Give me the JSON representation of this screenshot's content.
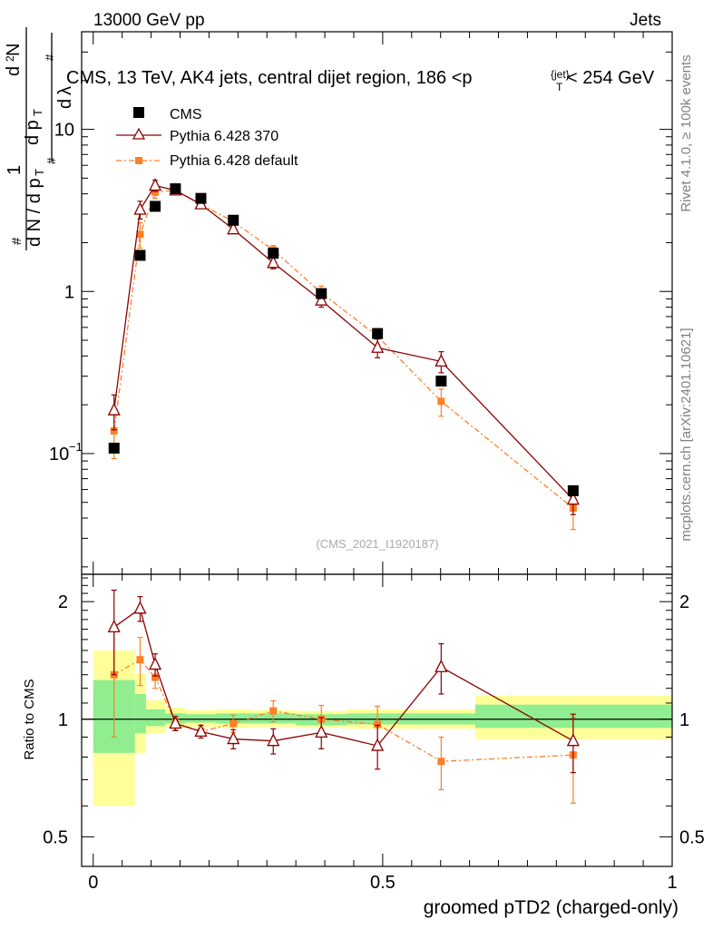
{
  "header": {
    "energy_label": "13000 GeV pp",
    "category_label": "Jets"
  },
  "side_labels": {
    "rivet": "Rivet 4.1.0, ≥ 100k events",
    "mcplots": "mcplots.cern.ch [arXiv:2401.10621]"
  },
  "watermark": "(CMS_2021_I1920187)",
  "colors": {
    "cms": "#000000",
    "pythia370": "#8b0000",
    "pythia_default": "#ff7f27",
    "band_inner": "#90ee90",
    "band_outer": "#ffff99"
  },
  "chart_data": [
    {
      "type": "scatter",
      "title": "CMS, 13 TeV, AK4 jets, central dijet region, 186 < p_T^{jet} < 254 GeV",
      "title_main": "CMS, 13 TeV, AK4 jets, central dijet region, 186 <p",
      "title_sub": "T",
      "title_sup": "{jet}",
      "title_end": "< 254 GeV",
      "ylabel": "1/(dN/dp_T) d²N/(dp_T dλ)",
      "yscale": "log",
      "ylim": [
        0.018,
        40
      ],
      "xlim": [
        -0.02,
        1.0
      ],
      "yticks": [
        {
          "value": 0.1,
          "label": "10",
          "sup": "−1"
        },
        {
          "value": 1,
          "label": "1",
          "sup": ""
        },
        {
          "value": 10,
          "label": "10",
          "sup": ""
        }
      ],
      "legend": [
        {
          "name": "CMS",
          "marker": "square"
        },
        {
          "name": "Pythia 6.428 370",
          "marker": "triangle"
        },
        {
          "name": "Pythia 6.428 default",
          "marker": "small-square"
        }
      ],
      "x": [
        0.036,
        0.081,
        0.107,
        0.142,
        0.186,
        0.242,
        0.311,
        0.394,
        0.491,
        0.601,
        0.829
      ],
      "series": [
        {
          "name": "CMS",
          "values": [
            0.108,
            1.67,
            3.35,
            4.3,
            3.75,
            2.75,
            1.72,
            0.97,
            0.55,
            0.28,
            0.059
          ],
          "err": [
            0,
            0,
            0,
            0,
            0,
            0,
            0,
            0,
            0,
            0,
            0
          ]
        },
        {
          "name": "Pythia 6.428 370",
          "values": [
            0.185,
            3.2,
            4.5,
            4.2,
            3.45,
            2.42,
            1.5,
            0.88,
            0.45,
            0.37,
            0.052
          ],
          "err": [
            0.045,
            0.4,
            0.35,
            0.2,
            0.15,
            0.14,
            0.12,
            0.08,
            0.06,
            0.055,
            0.01
          ]
        },
        {
          "name": "Pythia 6.428 default",
          "values": [
            0.138,
            2.25,
            4.1,
            4.2,
            3.45,
            2.7,
            1.8,
            0.98,
            0.53,
            0.21,
            0.046
          ],
          "err": [
            0.045,
            0.4,
            0.35,
            0.2,
            0.15,
            0.14,
            0.12,
            0.1,
            0.06,
            0.04,
            0.012
          ]
        }
      ]
    },
    {
      "type": "scatter",
      "title": "",
      "xlabel": "groomed pTD2 (charged-only)",
      "ylabel": "Ratio to CMS",
      "yscale": "log",
      "ylim": [
        0.42,
        2.35
      ],
      "xlim": [
        -0.02,
        1.0
      ],
      "xticks": [
        {
          "value": 0,
          "label": "0"
        },
        {
          "value": 0.5,
          "label": "0.5"
        },
        {
          "value": 1,
          "label": "1"
        }
      ],
      "yticks": [
        {
          "value": 0.5,
          "label": "0.5"
        },
        {
          "value": 1,
          "label": "1"
        },
        {
          "value": 2,
          "label": "2"
        }
      ],
      "bands": [
        {
          "x0": 0.0,
          "x1": 0.072,
          "inner": [
            0.82,
            1.26
          ],
          "outer": [
            0.6,
            1.5
          ]
        },
        {
          "x0": 0.072,
          "x1": 0.091,
          "inner": [
            0.92,
            1.16
          ],
          "outer": [
            0.82,
            1.31
          ]
        },
        {
          "x0": 0.091,
          "x1": 0.124,
          "inner": [
            0.96,
            1.06
          ],
          "outer": [
            0.92,
            1.12
          ]
        },
        {
          "x0": 0.124,
          "x1": 0.16,
          "inner": [
            0.975,
            1.035
          ],
          "outer": [
            0.95,
            1.07
          ]
        },
        {
          "x0": 0.16,
          "x1": 0.212,
          "inner": [
            0.98,
            1.03
          ],
          "outer": [
            0.955,
            1.055
          ]
        },
        {
          "x0": 0.212,
          "x1": 0.272,
          "inner": [
            0.975,
            1.035
          ],
          "outer": [
            0.95,
            1.06
          ]
        },
        {
          "x0": 0.272,
          "x1": 0.35,
          "inner": [
            0.975,
            1.035
          ],
          "outer": [
            0.955,
            1.055
          ]
        },
        {
          "x0": 0.35,
          "x1": 0.438,
          "inner": [
            0.965,
            1.03
          ],
          "outer": [
            0.95,
            1.05
          ]
        },
        {
          "x0": 0.438,
          "x1": 0.66,
          "inner": [
            0.97,
            1.035
          ],
          "outer": [
            0.945,
            1.06
          ]
        },
        {
          "x0": 0.66,
          "x1": 1.0,
          "inner": [
            0.95,
            1.09
          ],
          "outer": [
            0.89,
            1.15
          ]
        }
      ],
      "x": [
        0.036,
        0.081,
        0.107,
        0.142,
        0.186,
        0.242,
        0.311,
        0.394,
        0.491,
        0.601,
        0.829
      ],
      "series": [
        {
          "name": "Pythia 6.428 370",
          "values": [
            1.72,
            1.92,
            1.38,
            0.975,
            0.93,
            0.89,
            0.88,
            0.925,
            0.855,
            1.36,
            0.88
          ],
          "err": [
            0.42,
            0.14,
            0.09,
            0.04,
            0.035,
            0.05,
            0.065,
            0.085,
            0.11,
            0.2,
            0.15
          ]
        },
        {
          "name": "Pythia 6.428 default",
          "values": [
            1.3,
            1.42,
            1.28,
            0.98,
            0.93,
            0.975,
            1.05,
            1.0,
            0.97,
            0.78,
            0.81
          ],
          "err": [
            0.4,
            0.2,
            0.08,
            0.04,
            0.035,
            0.05,
            0.065,
            0.085,
            0.11,
            0.12,
            0.2
          ]
        }
      ]
    }
  ]
}
